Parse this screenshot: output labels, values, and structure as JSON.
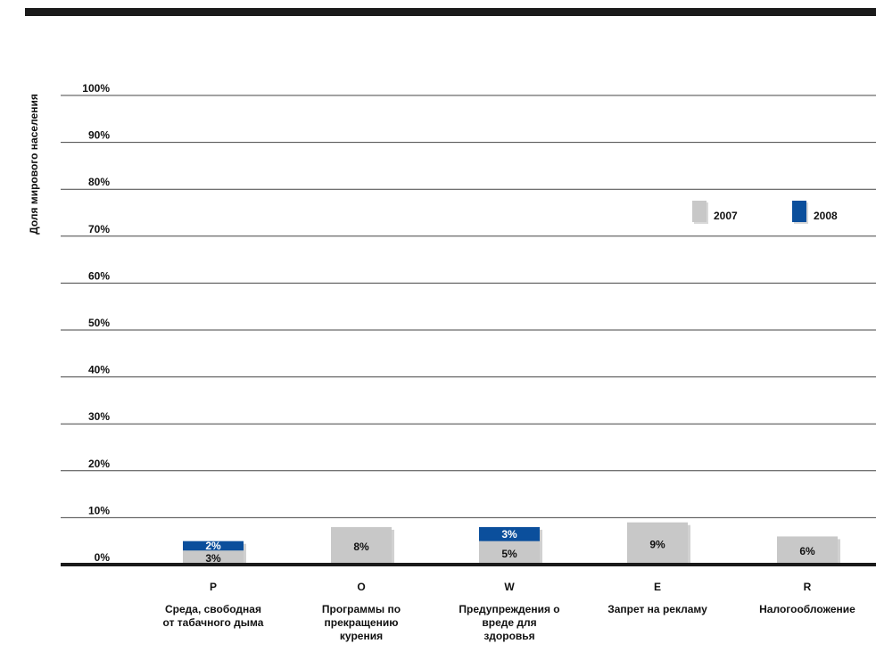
{
  "chart_data": {
    "type": "bar",
    "ylabel": "Доля мирового населения",
    "ylim": [
      0,
      100
    ],
    "yticks": [
      "0%",
      "10%",
      "20%",
      "30%",
      "40%",
      "50%",
      "60%",
      "70%",
      "80%",
      "90%",
      "100%"
    ],
    "legend": {
      "placement": "top-right",
      "entries": [
        {
          "label": "2007",
          "color": "#c8c8c8"
        },
        {
          "label": "2008",
          "color": "#0b4f9c"
        }
      ]
    },
    "categories": [
      {
        "letter": "P",
        "lines": [
          "Среда, свободная",
          "от табачного дыма"
        ]
      },
      {
        "letter": "O",
        "lines": [
          "Программы по",
          "прекращению",
          "курения"
        ]
      },
      {
        "letter": "W",
        "lines": [
          "Предупреждения о",
          "вреде для",
          "здоровья"
        ]
      },
      {
        "letter": "E",
        "lines": [
          "Запрет на рекламу"
        ]
      },
      {
        "letter": "R",
        "lines": [
          "Налогообложение"
        ]
      }
    ],
    "series": [
      {
        "name": "2007",
        "color": "#c8c8c8",
        "values": [
          3,
          8,
          5,
          9,
          6
        ],
        "labels": [
          "3%",
          "8%",
          "5%",
          "9%",
          "6%"
        ]
      },
      {
        "name": "2008",
        "color": "#0b4f9c",
        "values": [
          2,
          0,
          3,
          0,
          0
        ],
        "labels": [
          "2%",
          "",
          "3%",
          "",
          ""
        ]
      }
    ],
    "stacked": true,
    "grid": true
  }
}
